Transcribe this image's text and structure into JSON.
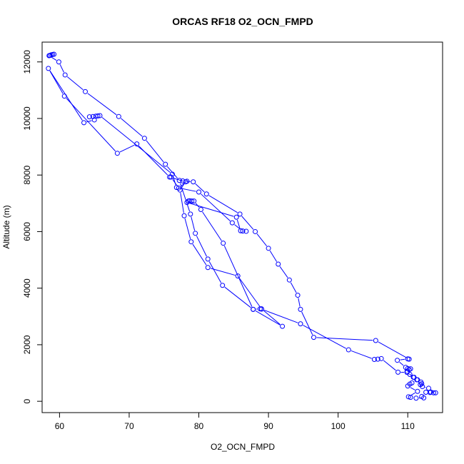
{
  "chart_data": {
    "type": "line",
    "title": "ORCAS RF18 O2_OCN_FMPD",
    "xlabel": "O2_OCN_FMPD",
    "ylabel": "Altitude (m)",
    "xlim": [
      57.5,
      115
    ],
    "ylim": [
      -400,
      12700
    ],
    "xticks": [
      60,
      70,
      80,
      90,
      100,
      110
    ],
    "yticks": [
      0,
      2000,
      4000,
      6000,
      8000,
      10000,
      12000
    ],
    "grid": false,
    "legend": "none",
    "series": [
      {
        "color": "#0000ff",
        "marker": "open-circle",
        "points": [
          [
            59.2,
            12270
          ],
          [
            59.0,
            12260
          ],
          [
            58.8,
            12250
          ],
          [
            58.6,
            12230
          ],
          [
            58.5,
            12220
          ],
          [
            59.9,
            12000
          ],
          [
            60.8,
            11540
          ],
          [
            63.7,
            10950
          ],
          [
            68.5,
            10070
          ],
          [
            72.2,
            9300
          ],
          [
            75.2,
            8380
          ],
          [
            77.2,
            7810
          ],
          [
            78.8,
            6620
          ],
          [
            79.5,
            5940
          ],
          [
            81.3,
            5030
          ],
          [
            83.4,
            4100
          ],
          [
            87.8,
            3250
          ],
          [
            92.0,
            2650
          ],
          [
            89.0,
            3270
          ],
          [
            85.6,
            4430
          ],
          [
            81.3,
            4730
          ],
          [
            78.9,
            5640
          ],
          [
            77.9,
            6560
          ],
          [
            77.3,
            7470
          ],
          [
            78.1,
            7760
          ],
          [
            75.8,
            7930
          ],
          [
            71.1,
            9100
          ],
          [
            68.3,
            8770
          ],
          [
            60.7,
            10790
          ],
          [
            58.4,
            11770
          ],
          [
            63.5,
            9850
          ],
          [
            65.0,
            9950
          ],
          [
            64.3,
            10060
          ],
          [
            64.8,
            10070
          ],
          [
            65.2,
            10080
          ],
          [
            65.5,
            10090
          ],
          [
            65.8,
            10100
          ],
          [
            76.2,
            8030
          ],
          [
            76.8,
            7560
          ],
          [
            80.0,
            7400
          ],
          [
            84.8,
            6310
          ],
          [
            86.3,
            6020
          ],
          [
            86.8,
            6010
          ],
          [
            86.0,
            6030
          ],
          [
            85.4,
            6510
          ],
          [
            78.3,
            7030
          ],
          [
            78.5,
            7080
          ],
          [
            79.0,
            7080
          ],
          [
            78.7,
            7090
          ],
          [
            79.3,
            7080
          ],
          [
            80.3,
            6780
          ],
          [
            83.5,
            5590
          ],
          [
            87.8,
            3250
          ],
          [
            88.8,
            3270
          ],
          [
            89.0,
            3260
          ],
          [
            94.6,
            2740
          ],
          [
            101.5,
            1820
          ],
          [
            105.2,
            1480
          ],
          [
            105.7,
            1490
          ],
          [
            106.2,
            1510
          ],
          [
            108.6,
            1030
          ],
          [
            109.9,
            1020
          ],
          [
            110.9,
            850
          ],
          [
            111.3,
            760
          ],
          [
            110.6,
            650
          ],
          [
            110.3,
            610
          ],
          [
            110.0,
            540
          ],
          [
            111.4,
            350
          ],
          [
            110.1,
            160
          ],
          [
            110.4,
            140
          ],
          [
            111.2,
            110
          ],
          [
            112.3,
            120
          ],
          [
            112.0,
            170
          ],
          [
            112.6,
            320
          ],
          [
            113.2,
            310
          ],
          [
            113.7,
            300
          ],
          [
            114.0,
            300
          ],
          [
            113.3,
            330
          ],
          [
            113.0,
            460
          ],
          [
            112.1,
            520
          ],
          [
            111.8,
            590
          ],
          [
            112.0,
            620
          ],
          [
            111.9,
            680
          ],
          [
            111.4,
            760
          ],
          [
            110.8,
            850
          ],
          [
            110.3,
            950
          ],
          [
            109.9,
            1060
          ],
          [
            110.2,
            1120
          ],
          [
            110.4,
            1150
          ],
          [
            110.0,
            1160
          ],
          [
            109.7,
            1200
          ],
          [
            108.5,
            1450
          ],
          [
            110.0,
            1500
          ],
          [
            110.2,
            1490
          ],
          [
            105.4,
            2150
          ],
          [
            96.5,
            2260
          ],
          [
            94.6,
            3250
          ],
          [
            94.2,
            3750
          ],
          [
            93.0,
            4290
          ],
          [
            91.4,
            4850
          ],
          [
            90.0,
            5410
          ],
          [
            88.1,
            6000
          ],
          [
            85.9,
            6620
          ],
          [
            81.1,
            7330
          ],
          [
            79.2,
            7760
          ],
          [
            77.7,
            7790
          ],
          [
            78.3,
            7780
          ],
          [
            77.1,
            7540
          ],
          [
            76.0,
            7930
          ]
        ]
      }
    ]
  }
}
